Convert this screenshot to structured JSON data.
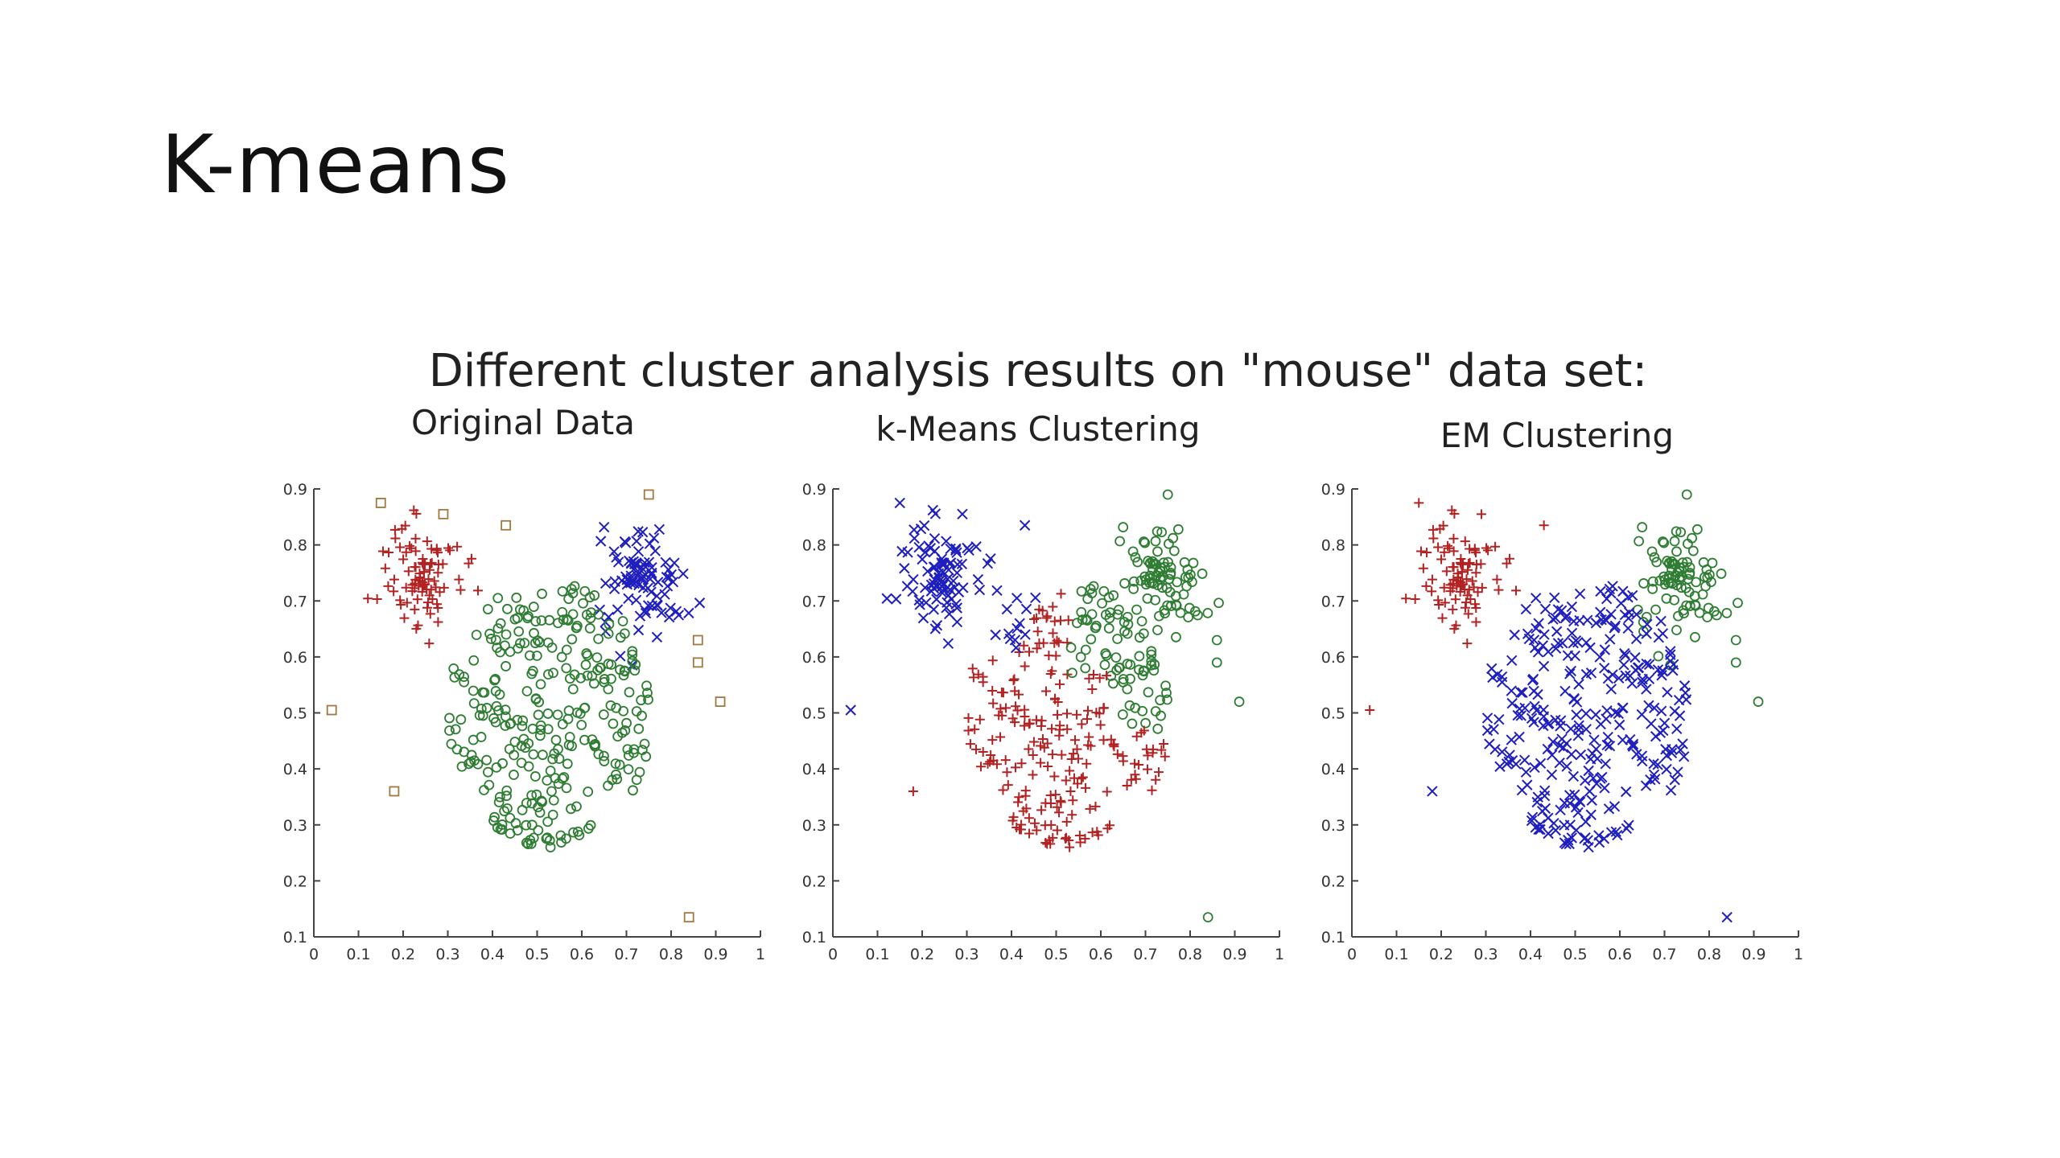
{
  "slide": {
    "title": "K-means"
  },
  "colors": {
    "red": "#b22222",
    "blue": "#1f1fbf",
    "green": "#2e7d32",
    "tan": "#a07840",
    "axis": "#444444"
  },
  "chart_data": {
    "type": "scatter",
    "title": "Different cluster analysis results on \"mouse\" data set:",
    "panels": [
      {
        "title": "Original Data",
        "xlim": [
          0,
          1
        ],
        "ylim": [
          0.1,
          0.9
        ],
        "xticks": [
          "0",
          "0.1",
          "0.2",
          "0.3",
          "0.4",
          "0.5",
          "0.6",
          "0.7",
          "0.8",
          "0.9",
          "1"
        ],
        "yticks": [
          "0.1",
          "0.2",
          "0.3",
          "0.4",
          "0.5",
          "0.6",
          "0.7",
          "0.8",
          "0.9"
        ],
        "assignment": {
          "left_ear": "red-plus",
          "right_ear": "blue-x",
          "face": "green-circle",
          "noise": "tan-square"
        },
        "grid": false
      },
      {
        "title": "k-Means Clustering",
        "xlim": [
          0,
          1
        ],
        "ylim": [
          0.1,
          0.9
        ],
        "xticks": [
          "0",
          "0.1",
          "0.2",
          "0.3",
          "0.4",
          "0.5",
          "0.6",
          "0.7",
          "0.8",
          "0.9",
          "1"
        ],
        "yticks": [
          "0.1",
          "0.2",
          "0.3",
          "0.4",
          "0.5",
          "0.6",
          "0.7",
          "0.8",
          "0.9"
        ],
        "assignment": {
          "left_ear": "blue-x",
          "right_ear": "green-circle",
          "face": "kmeans",
          "noise": "kmeans"
        },
        "grid": false
      },
      {
        "title": "EM Clustering",
        "xlim": [
          0,
          1
        ],
        "ylim": [
          0.1,
          0.9
        ],
        "xticks": [
          "0",
          "0.1",
          "0.2",
          "0.3",
          "0.4",
          "0.5",
          "0.6",
          "0.7",
          "0.8",
          "0.9",
          "1"
        ],
        "yticks": [
          "0.1",
          "0.2",
          "0.3",
          "0.4",
          "0.5",
          "0.6",
          "0.7",
          "0.8",
          "0.9"
        ],
        "assignment": {
          "left_ear": "red-plus",
          "right_ear": "green-circle",
          "face": "blue-x",
          "noise": "nearest"
        },
        "grid": false
      }
    ],
    "clusters": {
      "left_ear": {
        "center": [
          0.24,
          0.75
        ],
        "spread": [
          0.045,
          0.05
        ],
        "count": 90
      },
      "right_ear": {
        "center": [
          0.74,
          0.74
        ],
        "spread": [
          0.045,
          0.05
        ],
        "count": 90
      },
      "face": {
        "x_range": [
          0.3,
          0.76
        ],
        "y_range": [
          0.26,
          0.74
        ],
        "count": 300
      }
    },
    "noise_points": [
      [
        0.15,
        0.875
      ],
      [
        0.29,
        0.855
      ],
      [
        0.43,
        0.835
      ],
      [
        0.75,
        0.89
      ],
      [
        0.86,
        0.63
      ],
      [
        0.86,
        0.59
      ],
      [
        0.91,
        0.52
      ],
      [
        0.04,
        0.505
      ],
      [
        0.18,
        0.36
      ],
      [
        0.84,
        0.135
      ]
    ]
  }
}
